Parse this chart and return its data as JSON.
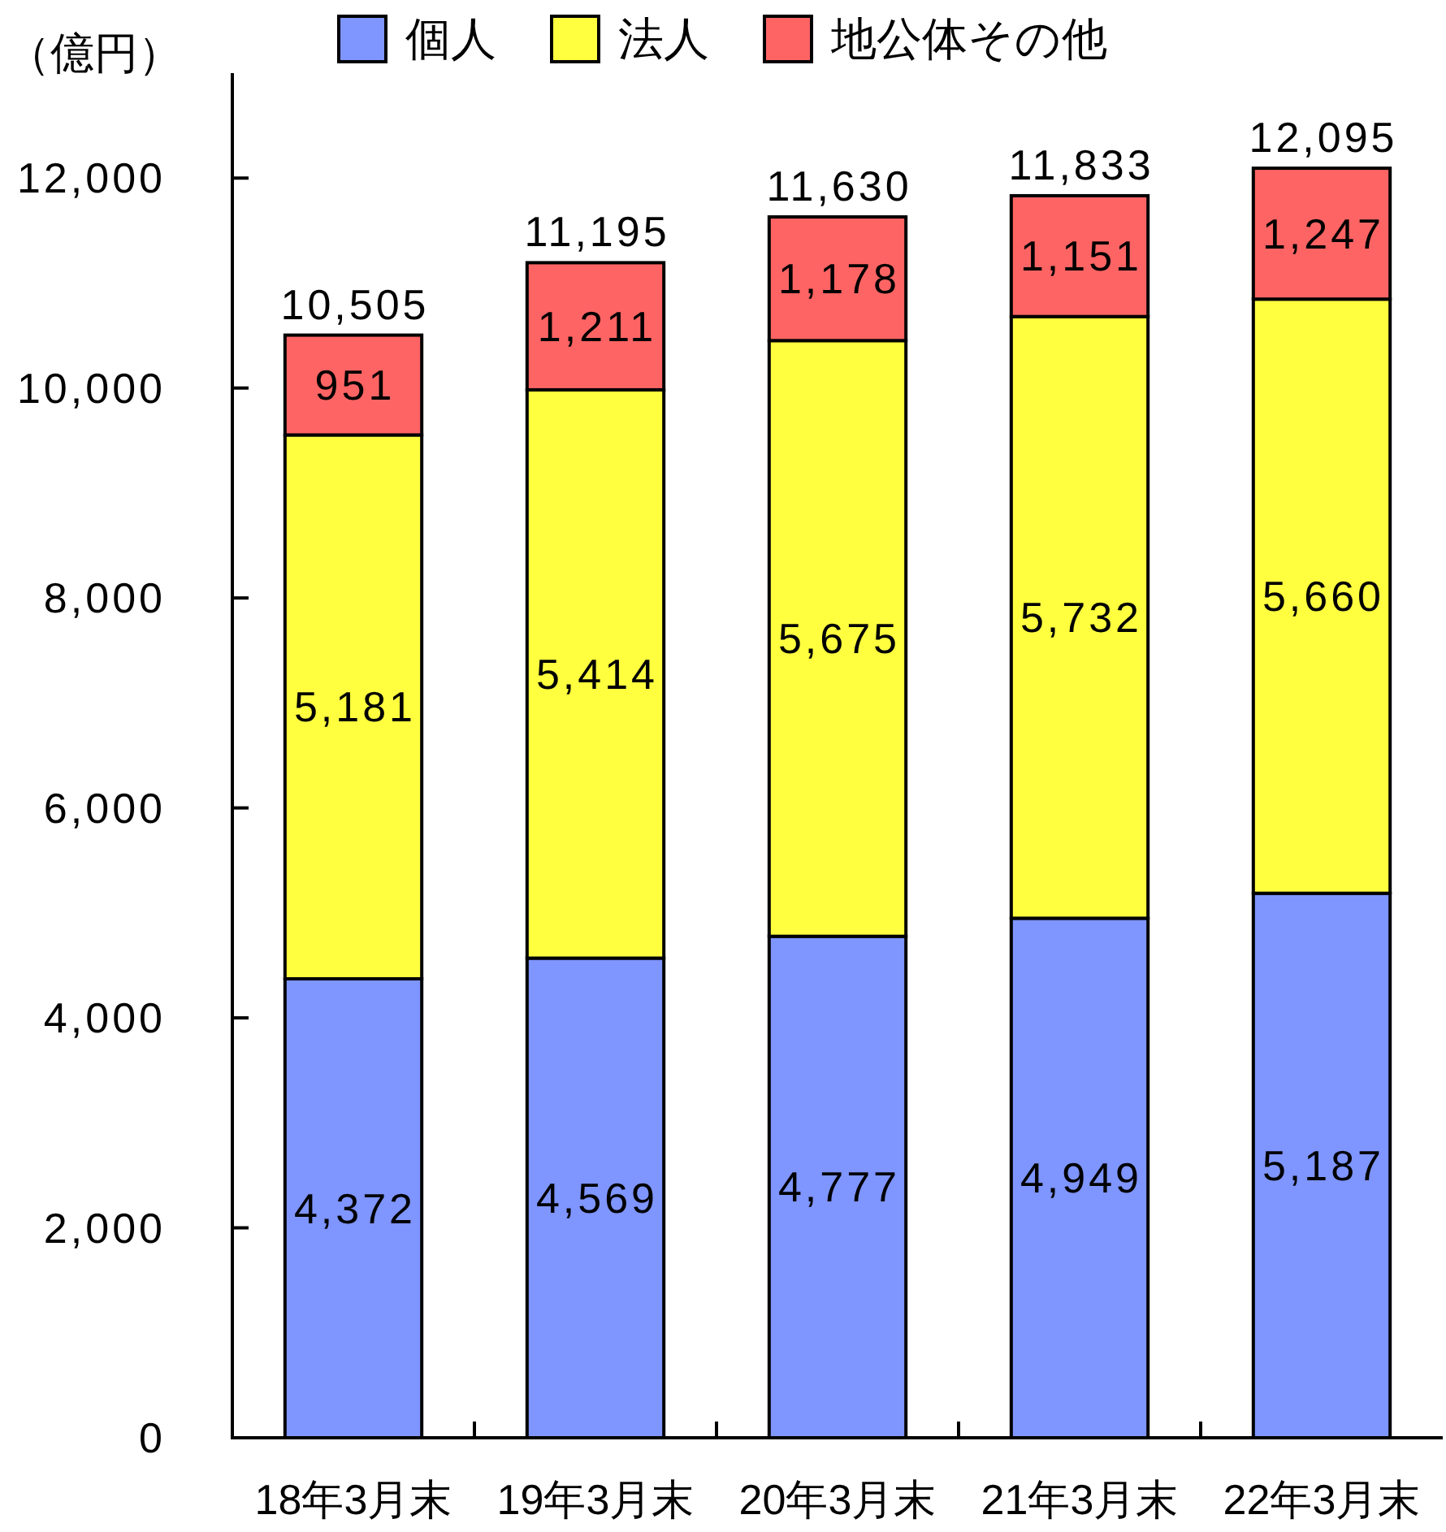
{
  "chart_data": {
    "type": "bar",
    "stacked": true,
    "ylabel": "（億円）",
    "categories": [
      "18年3月末",
      "19年3月末",
      "20年3月末",
      "21年3月末",
      "22年3月末"
    ],
    "series": [
      {
        "name": "個人",
        "color": "#7f95ff",
        "values": [
          4372,
          4569,
          4777,
          4949,
          5187
        ],
        "value_labels": [
          "4,372",
          "4,569",
          "4,777",
          "4,949",
          "5,187"
        ]
      },
      {
        "name": "法人",
        "color": "#ffff40",
        "values": [
          5181,
          5414,
          5675,
          5732,
          5660
        ],
        "value_labels": [
          "5,181",
          "5,414",
          "5,675",
          "5,732",
          "5,660"
        ]
      },
      {
        "name": "地公体その他",
        "color": "#ff6464",
        "values": [
          951,
          1211,
          1178,
          1151,
          1247
        ],
        "value_labels": [
          "951",
          "1,211",
          "1,178",
          "1,151",
          "1,247"
        ]
      }
    ],
    "ylim": [
      0,
      13000
    ],
    "yticks": [
      0,
      {
        "value": 2000,
        "label": "2,000"
      },
      {
        "value": 4000,
        "label": "4,000"
      },
      {
        "value": 6000,
        "label": "6,000"
      },
      {
        "value": 8000,
        "label": "8,000"
      },
      {
        "value": 10000,
        "label": "10,000"
      },
      {
        "value": 12000,
        "label": "12,000"
      }
    ],
    "totals": [
      "10,505",
      "11,195",
      "11,630",
      "11,833",
      "12,095"
    ],
    "legend": "top"
  }
}
